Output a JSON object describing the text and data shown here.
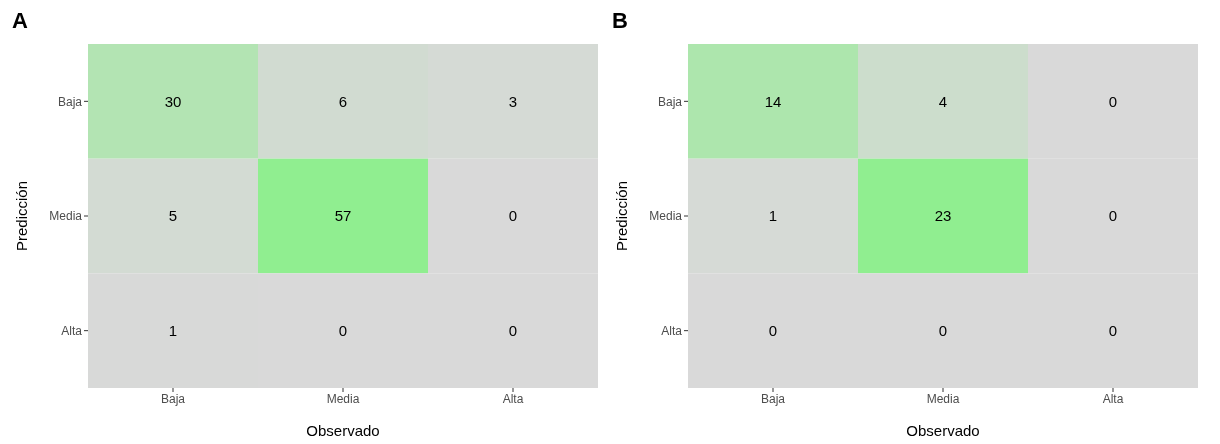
{
  "chart_data": [
    {
      "type": "heatmap",
      "title": "A",
      "xlabel": "Observado",
      "ylabel": "Predicción",
      "categories": [
        "Baja",
        "Media",
        "Alta"
      ],
      "y_categories": [
        "Baja",
        "Media",
        "Alta"
      ],
      "data_labels": true,
      "cells": [
        [
          30,
          6,
          3
        ],
        [
          5,
          57,
          0
        ],
        [
          1,
          0,
          0
        ]
      ]
    },
    {
      "type": "heatmap",
      "title": "B",
      "xlabel": "Observado",
      "ylabel": "Predicción",
      "categories": [
        "Baja",
        "Media",
        "Alta"
      ],
      "y_categories": [
        "Baja",
        "Media",
        "Alta"
      ],
      "data_labels": true,
      "cells": [
        [
          14,
          4,
          0
        ],
        [
          1,
          23,
          0
        ],
        [
          0,
          0,
          0
        ]
      ]
    }
  ]
}
